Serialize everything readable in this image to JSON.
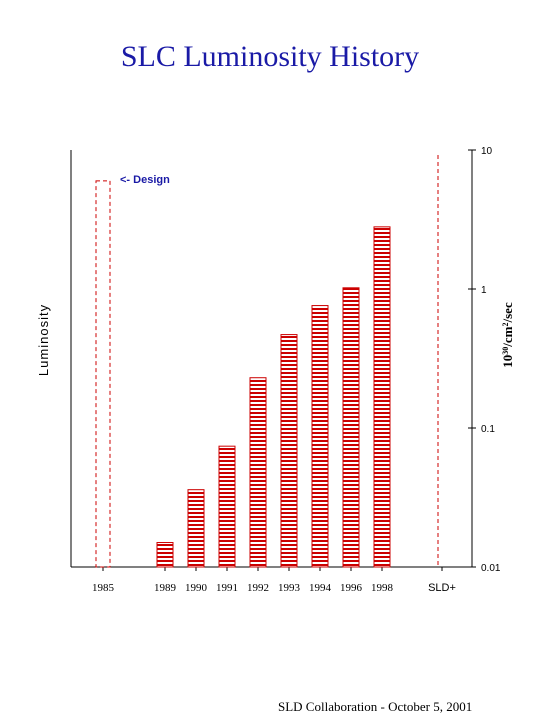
{
  "title": "SLC Luminosity History",
  "footer": "SLD Collaboration - October 5, 2001",
  "chart_data": {
    "type": "bar",
    "title": "SLC Luminosity History",
    "ylabel_left": "Luminosity",
    "ylabel_right_base": "10",
    "ylabel_right_exp": "30",
    "ylabel_right_unit": "/cm",
    "ylabel_right_unit_exp": "2",
    "ylabel_right_suffix": "/sec",
    "yscale": "log",
    "ylim": [
      0.01,
      10
    ],
    "ytick_labels": [
      "10",
      "1",
      "0.1",
      "0.01"
    ],
    "ytick_values": [
      10,
      1,
      0.1,
      0.01
    ],
    "categories": [
      "1985",
      "1989",
      "1990",
      "1991",
      "1992",
      "1993",
      "1994",
      "1996",
      "1998",
      "SLD+"
    ],
    "values": [
      null,
      0.015,
      0.036,
      0.074,
      0.23,
      0.47,
      0.76,
      1.02,
      2.8,
      null
    ],
    "design": {
      "label": "<- Design",
      "value": 6.0
    },
    "colors": {
      "bars": "#cc0000",
      "annotation": "#1a1aa6",
      "title": "#1a1aa6"
    },
    "grid": false
  }
}
